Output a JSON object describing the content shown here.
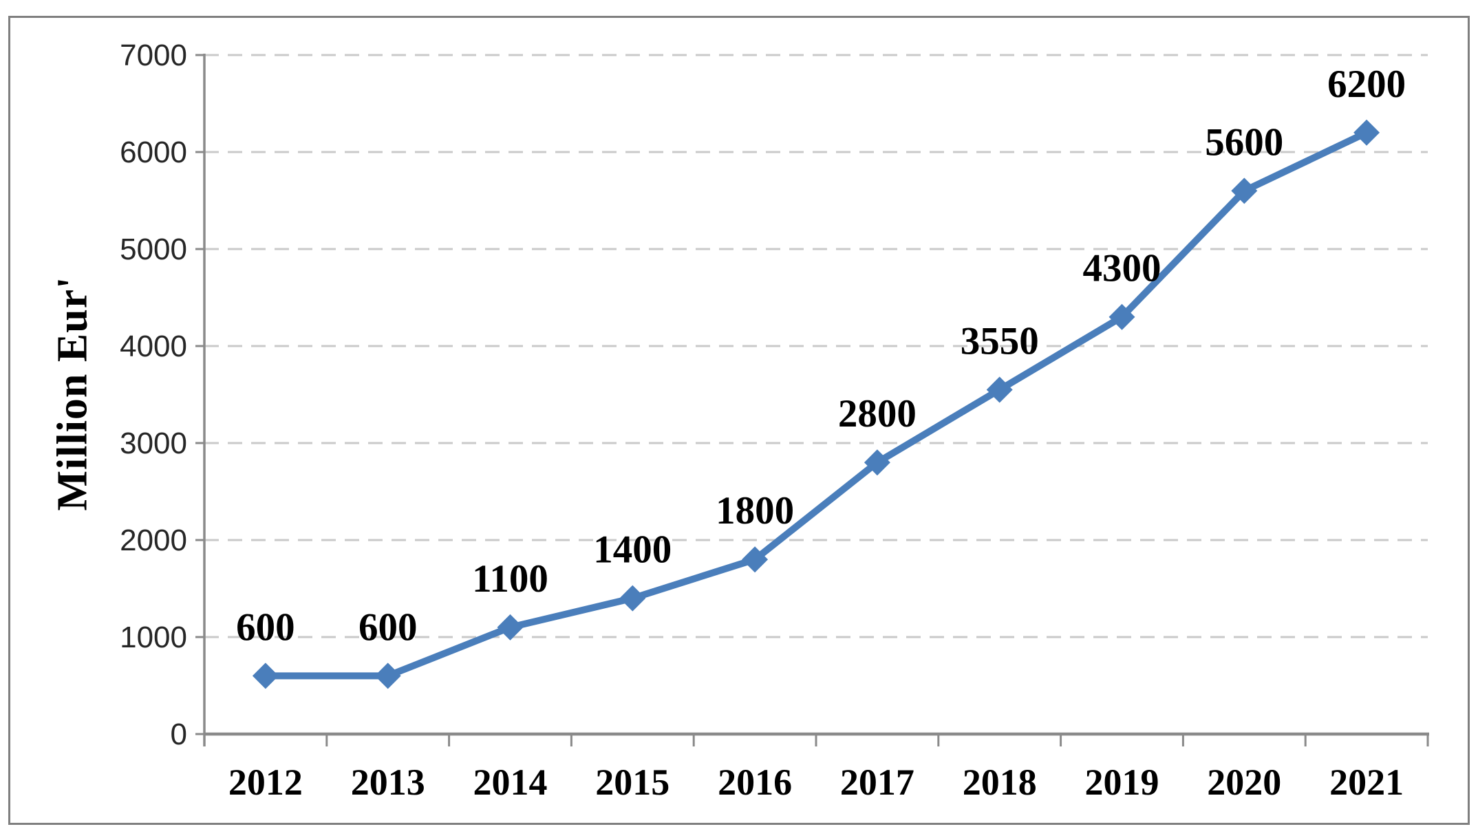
{
  "chart_data": {
    "type": "line",
    "categories": [
      "2012",
      "2013",
      "2014",
      "2015",
      "2016",
      "2017",
      "2018",
      "2019",
      "2020",
      "2021"
    ],
    "series": [
      {
        "name": "Million Eur",
        "values": [
          600,
          600,
          1100,
          1400,
          1800,
          2800,
          3550,
          4300,
          5600,
          6200
        ]
      }
    ],
    "data_labels": [
      "600",
      "600",
      "1100",
      "1400",
      "1800",
      "2800",
      "3550",
      "4300",
      "5600",
      "6200"
    ],
    "title": "",
    "xlabel": "",
    "ylabel": "Million Eur'",
    "ylim": [
      0,
      7000
    ],
    "yticks": [
      0,
      1000,
      2000,
      3000,
      4000,
      5000,
      6000,
      7000
    ],
    "ytick_step": 1000,
    "grid": "horizontal-dashed",
    "legend": "none",
    "marker": "diamond"
  },
  "colors": {
    "line": "#4a7ebb",
    "marker_fill": "#4a7ebb",
    "gridline": "#c9c9c9",
    "axis": "#8a8a8a",
    "frame_border": "#7f7f7f",
    "ytick_text": "#262626",
    "label_text": "#000000",
    "background": "#ffffff"
  }
}
